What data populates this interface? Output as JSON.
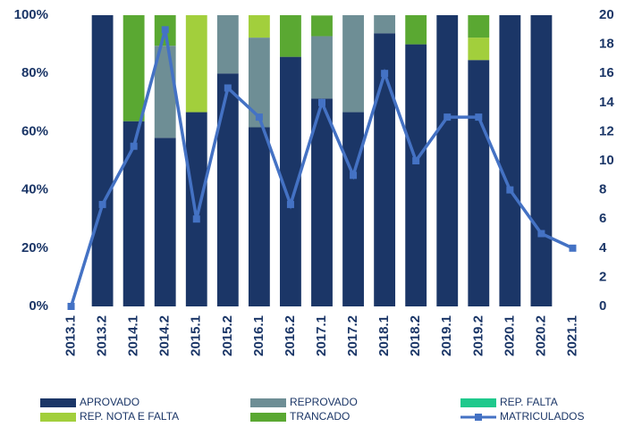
{
  "chart_data": {
    "type": "stacked-bar-line",
    "categories": [
      "2013.1",
      "2013.2",
      "2014.1",
      "2014.2",
      "2015.1",
      "2015.2",
      "2016.1",
      "2016.2",
      "2017.1",
      "2017.2",
      "2018.1",
      "2018.2",
      "2019.1",
      "2019.2",
      "2020.1",
      "2020.2",
      "2021.1"
    ],
    "series": [
      {
        "name": "APROVADO",
        "color": "#1b3667",
        "type": "bar",
        "values": [
          0,
          100,
          63.6,
          57.9,
          66.7,
          80,
          61.5,
          85.7,
          71.4,
          66.7,
          93.8,
          90,
          100,
          84.6,
          100,
          100,
          0
        ]
      },
      {
        "name": "REPROVADO",
        "color": "#6e8e95",
        "type": "bar",
        "values": [
          0,
          0,
          0,
          31.6,
          0,
          20,
          30.8,
          0,
          21.4,
          33.3,
          6.2,
          0,
          0,
          0,
          0,
          0,
          0
        ]
      },
      {
        "name": "REP. FALTA",
        "color": "#1fc98c",
        "type": "bar",
        "values": [
          0,
          0,
          0,
          0,
          0,
          0,
          0,
          0,
          0,
          0,
          0,
          0,
          0,
          0,
          0,
          0,
          0
        ]
      },
      {
        "name": "REP. NOTA E FALTA",
        "color": "#a2cf3c",
        "type": "bar",
        "values": [
          0,
          0,
          0,
          0,
          33.3,
          0,
          7.7,
          0,
          0,
          0,
          0,
          0,
          0,
          7.7,
          0,
          0,
          0
        ]
      },
      {
        "name": "TRANCADO",
        "color": "#5aa832",
        "type": "bar",
        "values": [
          0,
          0,
          36.4,
          10.5,
          0,
          0,
          0,
          14.3,
          7.1,
          0,
          0,
          10,
          0,
          7.7,
          0,
          0,
          0
        ]
      },
      {
        "name": "MATRICULADOS",
        "color": "#4472c4",
        "type": "line",
        "axis": "y2",
        "values": [
          0,
          7,
          11,
          19,
          6,
          15,
          13,
          7,
          14,
          9,
          16,
          10,
          13,
          13,
          8,
          5,
          4
        ]
      }
    ],
    "ylim": [
      0,
      100
    ],
    "yticks": [
      {
        "value": 0,
        "label": "0%"
      },
      {
        "value": 20,
        "label": "20%"
      },
      {
        "value": 40,
        "label": "40%"
      },
      {
        "value": 60,
        "label": "60%"
      },
      {
        "value": 80,
        "label": "80%"
      },
      {
        "value": 100,
        "label": "100%"
      }
    ],
    "y2lim": [
      0,
      20
    ],
    "y2ticks": [
      0,
      2,
      4,
      6,
      8,
      10,
      12,
      14,
      16,
      18,
      20
    ],
    "grid": false,
    "legend": "bottom"
  }
}
